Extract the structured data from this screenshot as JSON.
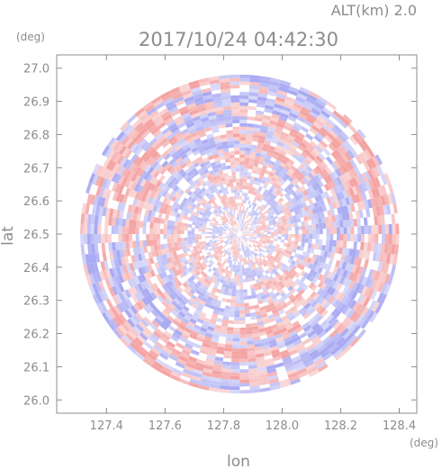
{
  "chart_data": {
    "type": "heatmap",
    "header_right": "ALT(km) 2.0",
    "title": "2017/10/24 04:42:30",
    "xlabel": "lon",
    "ylabel": "lat",
    "x_unit": "(deg)",
    "y_unit": "(deg)",
    "xlim": [
      127.23,
      128.46
    ],
    "ylim": [
      25.96,
      27.04
    ],
    "x_ticks": [
      "127.4",
      "127.6",
      "127.8",
      "128.0",
      "128.2",
      "128.4"
    ],
    "x_tick_values": [
      127.4,
      127.6,
      127.8,
      128.0,
      128.2,
      128.4
    ],
    "y_ticks": [
      "26.0",
      "26.1",
      "26.2",
      "26.3",
      "26.4",
      "26.5",
      "26.6",
      "26.7",
      "26.8",
      "26.9",
      "27.0"
    ],
    "y_tick_values": [
      26.0,
      26.1,
      26.2,
      26.3,
      26.4,
      26.5,
      26.6,
      26.7,
      26.8,
      26.9,
      27.0
    ],
    "center": [
      127.855,
      26.5
    ],
    "radius_deg": 0.545,
    "colors": {
      "positive": "#f4a3a3",
      "negative": "#a9aaf2",
      "neutral": "#ffffff",
      "frame": "#8c8c8c"
    }
  }
}
